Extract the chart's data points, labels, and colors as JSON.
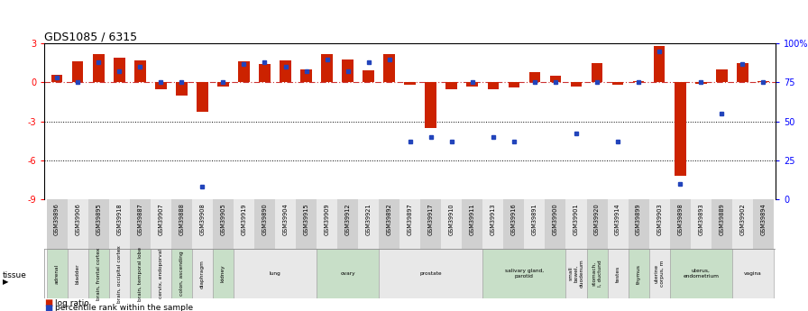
{
  "title": "GDS1085 / 6315",
  "gsm_ids": [
    "GSM39896",
    "GSM39906",
    "GSM39895",
    "GSM39918",
    "GSM39887",
    "GSM39907",
    "GSM39888",
    "GSM39908",
    "GSM39905",
    "GSM39919",
    "GSM39890",
    "GSM39904",
    "GSM39915",
    "GSM39909",
    "GSM39912",
    "GSM39921",
    "GSM39892",
    "GSM39897",
    "GSM39917",
    "GSM39910",
    "GSM39911",
    "GSM39913",
    "GSM39916",
    "GSM39891",
    "GSM39900",
    "GSM39901",
    "GSM39920",
    "GSM39914",
    "GSM39899",
    "GSM39903",
    "GSM39898",
    "GSM39893",
    "GSM39889",
    "GSM39902",
    "GSM39894"
  ],
  "log_ratio": [
    0.6,
    1.6,
    2.2,
    1.9,
    1.7,
    -0.5,
    -1.0,
    -2.3,
    -0.3,
    1.6,
    1.4,
    1.7,
    1.0,
    2.2,
    1.8,
    0.9,
    2.2,
    -0.2,
    -3.5,
    -0.5,
    -0.3,
    -0.5,
    -0.4,
    0.8,
    0.5,
    -0.3,
    1.5,
    -0.2,
    0.1,
    2.8,
    -7.2,
    -0.1,
    1.0,
    1.5,
    0.1
  ],
  "percentile_rank": [
    78,
    75,
    88,
    82,
    85,
    75,
    75,
    8,
    75,
    87,
    88,
    85,
    82,
    90,
    82,
    88,
    90,
    37,
    40,
    37,
    75,
    40,
    37,
    75,
    75,
    42,
    75,
    37,
    75,
    95,
    10,
    75,
    55,
    87,
    75
  ],
  "tissue_groups": [
    {
      "label": "adrenal",
      "start": 0,
      "end": 1,
      "color": "#c8dfc8"
    },
    {
      "label": "bladder",
      "start": 1,
      "end": 2,
      "color": "#e8e8e8"
    },
    {
      "label": "brain, frontal cortex",
      "start": 2,
      "end": 3,
      "color": "#c8dfc8"
    },
    {
      "label": "brain, occipital cortex",
      "start": 3,
      "end": 4,
      "color": "#e8e8e8"
    },
    {
      "label": "brain, temporal lobe",
      "start": 4,
      "end": 5,
      "color": "#c8dfc8"
    },
    {
      "label": "cervix, endoporval",
      "start": 5,
      "end": 6,
      "color": "#e8e8e8"
    },
    {
      "label": "colon, ascending",
      "start": 6,
      "end": 7,
      "color": "#c8dfc8"
    },
    {
      "label": "diaphragm",
      "start": 7,
      "end": 8,
      "color": "#e8e8e8"
    },
    {
      "label": "kidney",
      "start": 8,
      "end": 9,
      "color": "#c8dfc8"
    },
    {
      "label": "lung",
      "start": 9,
      "end": 13,
      "color": "#e8e8e8"
    },
    {
      "label": "ovary",
      "start": 13,
      "end": 16,
      "color": "#c8dfc8"
    },
    {
      "label": "prostate",
      "start": 16,
      "end": 21,
      "color": "#e8e8e8"
    },
    {
      "label": "salivary gland,\nparotid",
      "start": 21,
      "end": 25,
      "color": "#c8dfc8"
    },
    {
      "label": "small\nbowel,\nduodenum",
      "start": 25,
      "end": 26,
      "color": "#e8e8e8"
    },
    {
      "label": "stomach,\nI, ductund",
      "start": 26,
      "end": 27,
      "color": "#c8dfc8"
    },
    {
      "label": "testes",
      "start": 27,
      "end": 28,
      "color": "#e8e8e8"
    },
    {
      "label": "thymus",
      "start": 28,
      "end": 29,
      "color": "#c8dfc8"
    },
    {
      "label": "uterine\ncorpus, m",
      "start": 29,
      "end": 30,
      "color": "#e8e8e8"
    },
    {
      "label": "uterus,\nendometrium",
      "start": 30,
      "end": 33,
      "color": "#c8dfc8"
    },
    {
      "label": "vagina",
      "start": 33,
      "end": 35,
      "color": "#e8e8e8"
    }
  ],
  "bar_color": "#cc2200",
  "dot_color": "#2244bb",
  "ylim": [
    -9,
    3
  ],
  "yticks": [
    -9,
    -6,
    -3,
    0,
    3
  ],
  "y2lim": [
    0,
    100
  ],
  "y2ticks": [
    0,
    25,
    50,
    75,
    100
  ],
  "dotted_lines": [
    -3,
    -6
  ],
  "zero_line_color": "#cc3333",
  "title_fontsize": 9
}
